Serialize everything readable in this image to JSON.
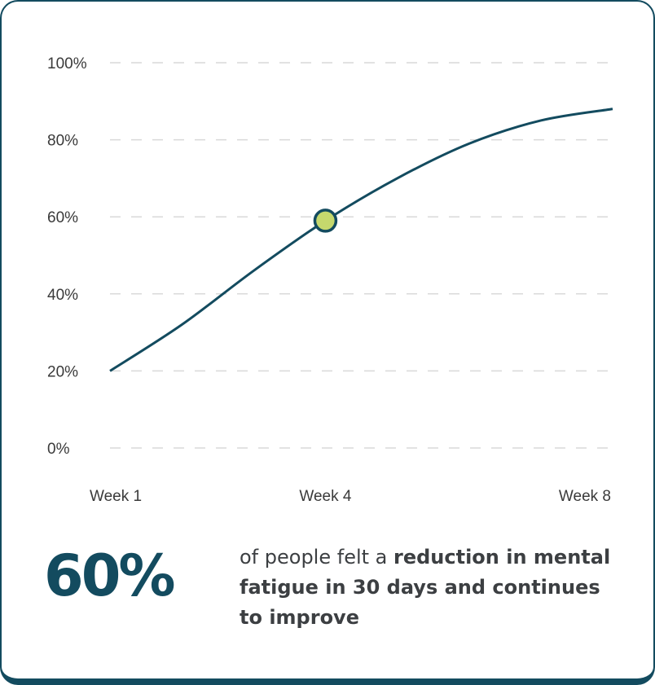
{
  "colors": {
    "accent": "#134b5f",
    "marker": "#c5d86d",
    "grid": "#d9d9d9",
    "text": "#3c3f42"
  },
  "chart_data": {
    "type": "line",
    "title": "",
    "xlabel": "",
    "ylabel": "",
    "ylim": [
      0,
      100
    ],
    "y_ticks": [
      0,
      20,
      40,
      60,
      80,
      100
    ],
    "y_tick_labels": [
      "0%",
      "20%",
      "40%",
      "60%",
      "80%",
      "100%"
    ],
    "x_range": [
      1,
      8
    ],
    "x_ticks": [
      1,
      4,
      8
    ],
    "x_tick_labels": [
      "Week 1",
      "Week 4",
      "Week 8"
    ],
    "grid": true,
    "series": [
      {
        "name": "Reduction in mental fatigue",
        "x": [
          1,
          2,
          3,
          4,
          5,
          6,
          7,
          8
        ],
        "y": [
          20,
          32,
          46,
          59,
          70,
          79,
          85,
          88
        ]
      }
    ],
    "highlight": {
      "x": 4,
      "y": 59
    }
  },
  "stat": {
    "value": "60%"
  },
  "caption": {
    "plain": "of people felt a ",
    "bold": "reduction in mental fatigue in 30 days and continues to improve"
  }
}
